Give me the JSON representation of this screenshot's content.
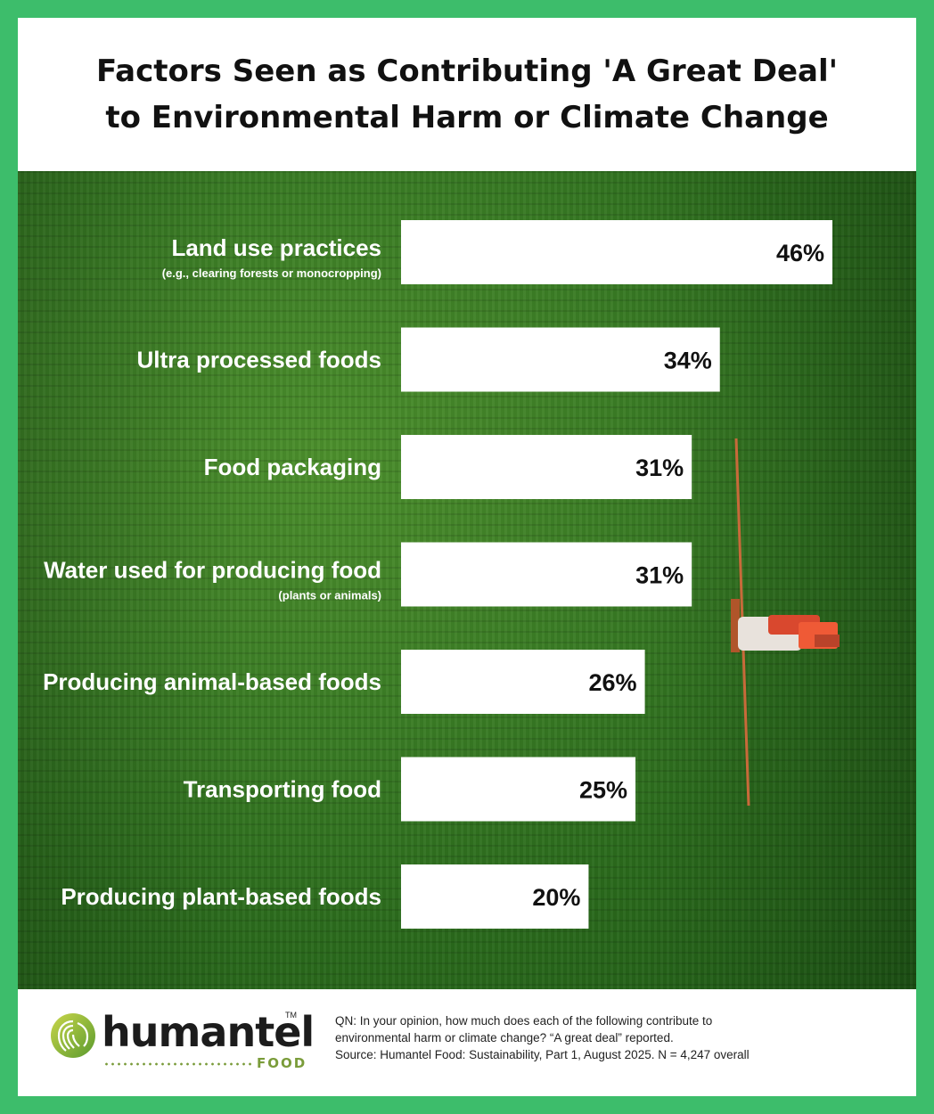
{
  "title_lines": [
    "Factors Seen as Contributing 'A Great Deal'",
    "to Environmental Harm or Climate Change"
  ],
  "chart_data": {
    "type": "bar",
    "orientation": "horizontal",
    "title": "Factors Seen as Contributing 'A Great Deal' to Environmental Harm or Climate Change",
    "categories": [
      "Land use practices",
      "Ultra processed foods",
      "Food packaging",
      "Water used for producing food",
      "Producing animal-based foods",
      "Transporting food",
      "Producing plant-based foods"
    ],
    "subtitles": [
      "(e.g., clearing forests or monocropping)",
      "",
      "",
      "(plants or animals)",
      "",
      "",
      ""
    ],
    "values": [
      46,
      34,
      31,
      31,
      26,
      25,
      20
    ],
    "value_labels": [
      "46%",
      "34%",
      "31%",
      "31%",
      "26%",
      "25%",
      "20%"
    ],
    "unit": "%",
    "xlim": [
      0,
      46
    ],
    "grid": false,
    "legend": "none"
  },
  "footer": {
    "question_line1": "QN: In your opinion, how much does each of the following contribute to",
    "question_line2": "environmental harm or climate change? “A great deal” reported.",
    "source_line": "Source: Humantel Food: Sustainability, Part 1, August 2025.  N = 4,247 overall"
  },
  "logo": {
    "name": "humantel",
    "tm": "TM",
    "sub": "FOOD",
    "icon": "fingerprint-icon"
  },
  "colors": {
    "frame": "#3dbd6b",
    "bar": "#ffffff",
    "label_text": "#ffffff",
    "value_text": "#111111",
    "logo_green": "#7a9c3a"
  }
}
